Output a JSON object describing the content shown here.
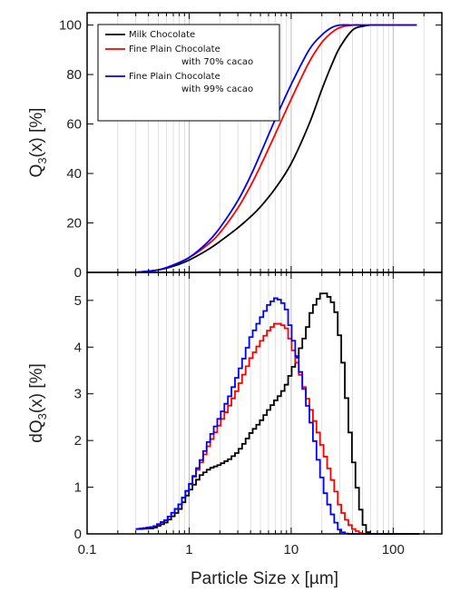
{
  "chart_data": {
    "type": "line",
    "x_axis": {
      "label": "Particle Size x [µm]",
      "scale": "log",
      "range": [
        0.1,
        300
      ],
      "ticks": [
        "0.1",
        "1",
        "10",
        "100"
      ],
      "tick_values": [
        0.1,
        1,
        10,
        100
      ],
      "grid": "vertical minor and major"
    },
    "colors": {
      "Milk Chocolate": "#000000",
      "70": "#ff0000",
      "99": "#0000ff"
    },
    "panels": [
      {
        "id": "cumulative",
        "ylabel_main": "Q",
        "ylabel_sub": "3",
        "ylabel_rest": "(x) [%]",
        "ylim": [
          0,
          105
        ],
        "yticks": [
          "0",
          "20",
          "40",
          "60",
          "80",
          "100"
        ],
        "ytick_values": [
          0,
          20,
          40,
          60,
          80,
          100
        ],
        "legend_position": "top-left",
        "legend": [
          {
            "lines": [
              "Milk Chocolate"
            ],
            "color": "#000000"
          },
          {
            "lines": [
              "Fine Plain Chocolate",
              "with 70% cacao"
            ],
            "color": "#ff0000"
          },
          {
            "lines": [
              "Fine Plain Chocolate",
              "with 99% cacao"
            ],
            "color": "#0000ff"
          }
        ],
        "series": [
          {
            "name": "Milk Chocolate",
            "color": "#000000",
            "x": [
              0.3,
              0.5,
              0.7,
              1,
              1.5,
              2,
              3,
              4,
              5,
              7,
              10,
              15,
              20,
              25,
              30,
              40,
              50,
              60,
              80,
              100,
              170
            ],
            "y": [
              0,
              1,
              2.5,
              5,
              9,
              12.5,
              18,
              22.5,
              26.5,
              34,
              44,
              60,
              74,
              84,
              91,
              98,
              99.5,
              100,
              100,
              100,
              100
            ]
          },
          {
            "name": "Fine Plain Chocolate with 70% cacao",
            "color": "#ff0000",
            "x": [
              0.3,
              0.5,
              0.7,
              1,
              1.5,
              2,
              3,
              4,
              5,
              7,
              10,
              15,
              20,
              25,
              30,
              40,
              50,
              60,
              80,
              100,
              170
            ],
            "y": [
              0,
              1,
              3,
              6,
              11,
              16,
              26,
              35,
              43,
              56,
              70,
              85,
              93,
              97,
              99,
              100,
              100,
              100,
              100,
              100,
              100
            ]
          },
          {
            "name": "Fine Plain Chocolate with 99% cacao",
            "color": "#0000ff",
            "x": [
              0.3,
              0.5,
              0.7,
              1,
              1.5,
              2,
              3,
              4,
              5,
              7,
              10,
              15,
              20,
              25,
              30,
              40,
              50,
              60,
              80,
              100,
              170
            ],
            "y": [
              0,
              1,
              3,
              6,
              12,
              18,
              29,
              39,
              48,
              62,
              76,
              90,
              96,
              99,
              100,
              100,
              100,
              100,
              100,
              100,
              100
            ]
          }
        ]
      },
      {
        "id": "density",
        "ylabel_main": "dQ",
        "ylabel_sub": "3",
        "ylabel_rest": "(x) [%]",
        "ylim": [
          0,
          5.6
        ],
        "yticks": [
          "0",
          "1",
          "2",
          "3",
          "4",
          "5"
        ],
        "ytick_values": [
          0,
          1,
          2,
          3,
          4,
          5
        ],
        "step": true,
        "series": [
          {
            "name": "Milk Chocolate",
            "color": "#000000",
            "x": [
              0.3,
              0.45,
              0.6,
              0.8,
              1,
              1.3,
              1.6,
              2,
              2.5,
              3,
              3.5,
              4,
              5,
              6,
              7,
              8,
              9,
              10,
              12,
              14,
              16,
              18,
              20,
              22,
              25,
              28,
              30,
              33,
              36,
              40,
              45,
              50,
              55,
              60,
              100,
              180
            ],
            "y": [
              0.1,
              0.12,
              0.25,
              0.5,
              0.9,
              1.25,
              1.4,
              1.48,
              1.6,
              1.75,
              1.95,
              2.15,
              2.4,
              2.65,
              2.85,
              3.0,
              3.2,
              3.45,
              3.9,
              4.3,
              4.8,
              5.0,
              5.15,
              5.15,
              5.0,
              4.7,
              4.2,
              3.5,
              2.6,
              1.7,
              0.9,
              0.3,
              0.05,
              0,
              0,
              0
            ]
          },
          {
            "name": "Fine Plain Chocolate with 70% cacao",
            "color": "#ff0000",
            "x": [
              0.3,
              0.45,
              0.6,
              0.8,
              1,
              1.3,
              1.6,
              2,
              2.5,
              3,
              3.5,
              4,
              5,
              6,
              7,
              8,
              9,
              10,
              12,
              14,
              16,
              18,
              20,
              22,
              25,
              28,
              30,
              33,
              36,
              40,
              45,
              50,
              55,
              60,
              100,
              180
            ],
            "y": [
              0.1,
              0.15,
              0.3,
              0.6,
              1.0,
              1.5,
              1.95,
              2.35,
              2.75,
              3.1,
              3.45,
              3.75,
              4.1,
              4.35,
              4.5,
              4.5,
              4.4,
              4.1,
              3.5,
              3.0,
              2.6,
              2.25,
              1.9,
              1.6,
              1.2,
              0.85,
              0.6,
              0.4,
              0.25,
              0.12,
              0.05,
              0,
              0,
              0,
              0,
              0
            ]
          },
          {
            "name": "Fine Plain Chocolate with 99% cacao",
            "color": "#0000ff",
            "x": [
              0.3,
              0.45,
              0.6,
              0.8,
              1,
              1.3,
              1.6,
              2,
              2.5,
              3,
              3.5,
              4,
              5,
              6,
              7,
              8,
              9,
              10,
              12,
              14,
              16,
              18,
              20,
              22,
              25,
              28,
              30,
              33,
              36,
              40,
              45,
              50,
              55,
              60,
              100,
              180
            ],
            "y": [
              0.1,
              0.15,
              0.3,
              0.6,
              1.0,
              1.55,
              2.05,
              2.5,
              2.95,
              3.4,
              3.8,
              4.2,
              4.6,
              4.9,
              5.05,
              5.0,
              4.8,
              4.35,
              3.6,
              2.9,
              2.3,
              1.7,
              1.2,
              0.8,
              0.45,
              0.2,
              0.08,
              0.02,
              0,
              0,
              0,
              0,
              0,
              0,
              0,
              0
            ]
          }
        ]
      }
    ]
  }
}
